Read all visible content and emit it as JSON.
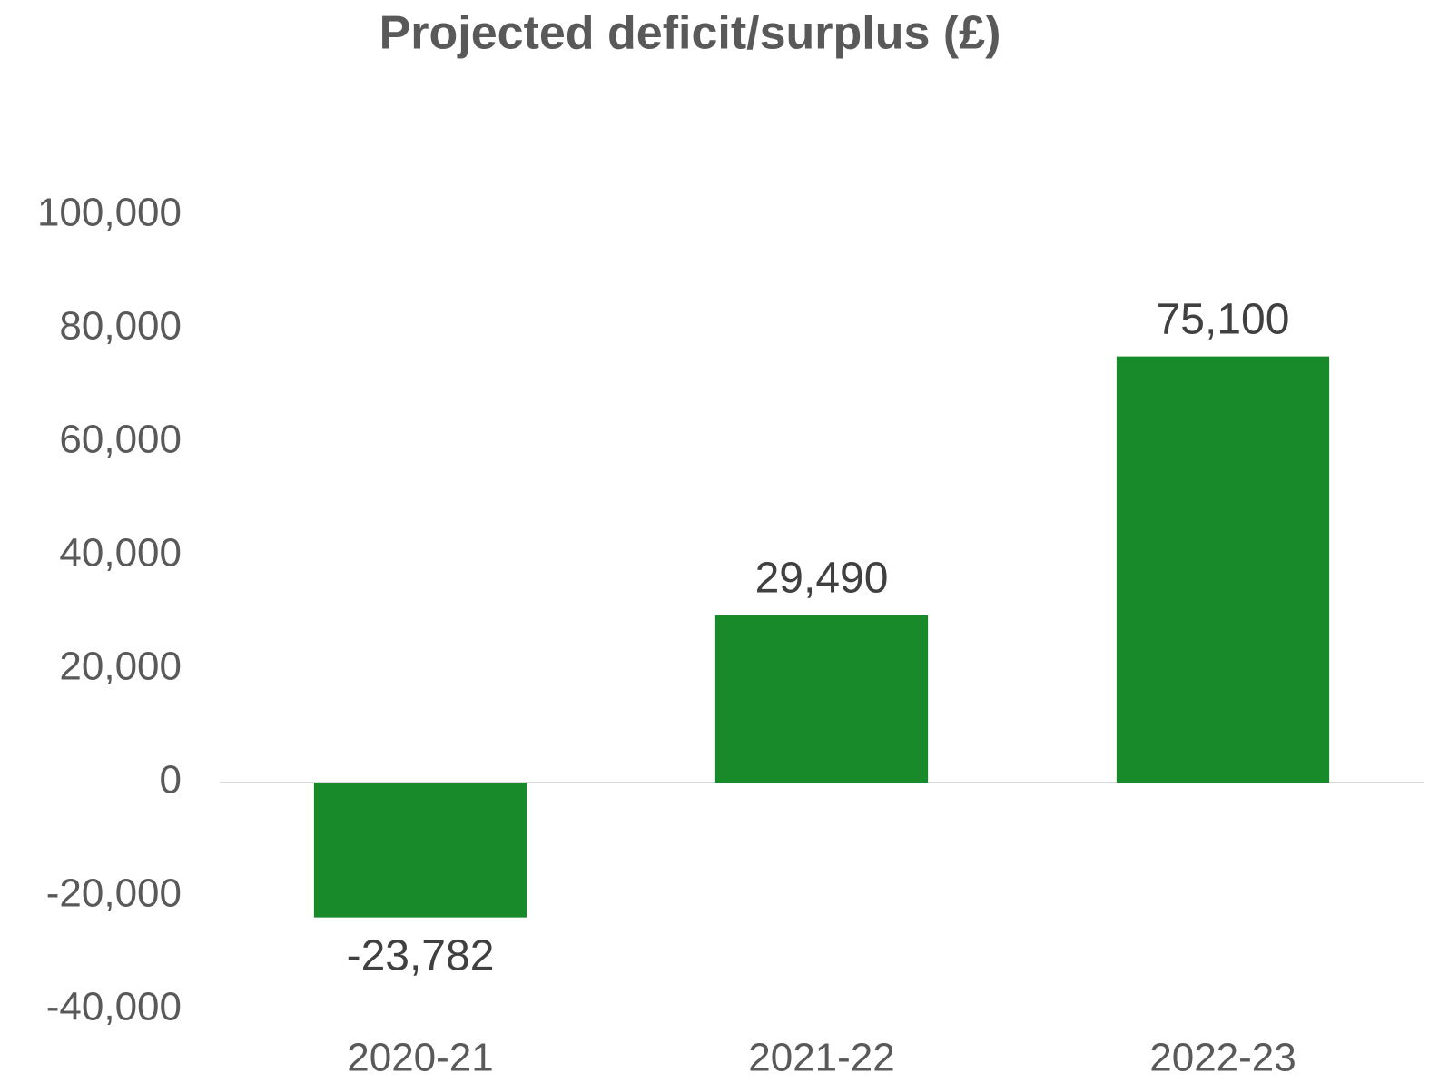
{
  "chart_data": {
    "type": "bar",
    "title": "Projected deficit/surplus (£)",
    "categories": [
      "2020-21",
      "2021-22",
      "2022-23"
    ],
    "values": [
      -23782,
      29490,
      75100
    ],
    "value_labels": [
      "-23,782",
      "29,490",
      "75,100"
    ],
    "color": "#188a2a",
    "ylim": [
      -40000,
      100000
    ],
    "yticks": [
      {
        "value": -40000,
        "label": "-40,000"
      },
      {
        "value": -20000,
        "label": "-20,000"
      },
      0,
      {
        "value": 20000,
        "label": "20,000"
      },
      {
        "value": 40000,
        "label": "40,000"
      },
      {
        "value": 60000,
        "label": "60,000"
      },
      {
        "value": 80000,
        "label": "80,000"
      },
      {
        "value": 100000,
        "label": "100,000"
      }
    ],
    "grid": false
  }
}
